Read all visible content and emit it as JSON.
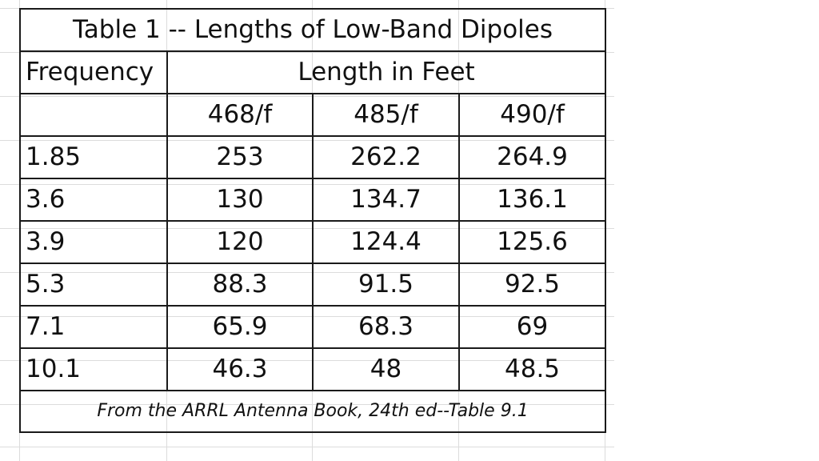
{
  "table": {
    "title": "Table 1 -- Lengths of Low-Band Dipoles",
    "frequency_header": "Frequency",
    "length_header": "Length in Feet",
    "formula_headers": [
      "468/f",
      "485/f",
      "490/f"
    ],
    "rows": [
      {
        "frequency": "1.85",
        "values": [
          "253",
          "262.2",
          "264.9"
        ]
      },
      {
        "frequency": "3.6",
        "values": [
          "130",
          "134.7",
          "136.1"
        ]
      },
      {
        "frequency": "3.9",
        "values": [
          "120",
          "124.4",
          "125.6"
        ]
      },
      {
        "frequency": "5.3",
        "values": [
          "88.3",
          "91.5",
          "92.5"
        ]
      },
      {
        "frequency": "7.1",
        "values": [
          "65.9",
          "68.3",
          "69"
        ]
      },
      {
        "frequency": "10.1",
        "values": [
          "46.3",
          "48",
          "48.5"
        ]
      }
    ],
    "footnote": "From the ARRL Antenna Book, 24th ed--Table 9.1"
  }
}
